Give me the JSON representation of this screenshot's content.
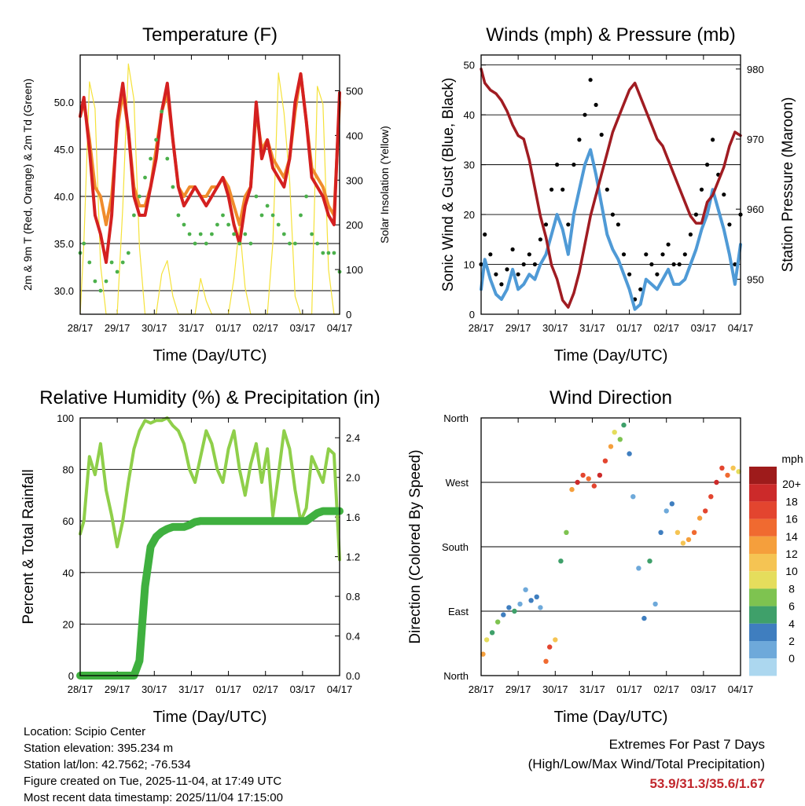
{
  "x_ticks": [
    "28/17",
    "29/17",
    "30/17",
    "31/17",
    "01/17",
    "02/17",
    "03/17",
    "04/17"
  ],
  "xlabel": "Time (Day/UTC)",
  "colors": {
    "t2m": "#d42020",
    "t9m": "#f08c2c",
    "td": "#4bb04b",
    "solar": "#f5e23a",
    "gust": "#000000",
    "wind": "#4f9ad6",
    "pressure": "#a01c22",
    "rh": "#8fcf4a",
    "precip": "#3fb03f",
    "extreme": "#c1272d"
  },
  "chart_data": [
    {
      "type": "line",
      "title": "Temperature (F)",
      "xlabel": "Time (Day/UTC)",
      "ylabel": "2m & 9m T (Red, Orange) & 2m Td (Green)",
      "ylabel_right": "Solar Insolation (Yellow)",
      "ylim": [
        27.5,
        55
      ],
      "ylim_right": [
        0,
        580
      ],
      "yticks": [
        30.0,
        35.0,
        40.0,
        45.0,
        50.0
      ],
      "yticks_right": [
        0,
        100,
        200,
        300,
        400,
        500
      ],
      "x": [
        0,
        0.1,
        0.25,
        0.4,
        0.55,
        0.7,
        0.85,
        1.0,
        1.15,
        1.3,
        1.45,
        1.6,
        1.75,
        1.9,
        2.05,
        2.2,
        2.35,
        2.5,
        2.65,
        2.8,
        2.95,
        3.1,
        3.25,
        3.4,
        3.55,
        3.7,
        3.85,
        4.0,
        4.15,
        4.3,
        4.45,
        4.6,
        4.75,
        4.9,
        5.05,
        5.2,
        5.35,
        5.5,
        5.65,
        5.8,
        5.95,
        6.1,
        6.25,
        6.4,
        6.55,
        6.7,
        6.85,
        7.0
      ],
      "series": [
        {
          "name": "2m T",
          "values": [
            48.5,
            50.5,
            45,
            38,
            36,
            33,
            38,
            48,
            52,
            47,
            40,
            38,
            38,
            41,
            44,
            49,
            52,
            46,
            41,
            39,
            40,
            41,
            40,
            39,
            40,
            41,
            42,
            40,
            37,
            35,
            39,
            41,
            50,
            44,
            46,
            43,
            42,
            41,
            44,
            50,
            53,
            48,
            42,
            41,
            40,
            38,
            37,
            51
          ]
        },
        {
          "name": "9m T",
          "values": [
            48.5,
            50,
            46,
            41,
            40,
            37,
            40,
            47,
            51,
            47,
            41,
            39,
            39,
            41,
            45,
            49,
            51,
            46,
            41,
            40,
            41,
            41,
            40,
            40,
            41,
            41,
            42,
            41,
            39,
            37,
            40,
            41,
            49,
            45,
            46,
            44,
            43,
            42,
            44,
            49,
            53,
            48,
            43,
            42,
            41,
            39,
            38,
            50
          ]
        },
        {
          "name": "2m Td",
          "values": [
            34,
            35,
            33,
            31,
            30,
            31,
            33,
            32,
            33,
            34,
            38,
            40,
            42,
            44,
            46,
            49,
            44,
            41,
            38,
            37,
            36,
            35,
            36,
            35,
            36,
            37,
            38,
            37,
            36,
            35,
            36,
            35,
            40,
            38,
            39,
            38,
            37,
            36,
            35,
            35,
            38,
            40,
            36,
            35,
            34,
            34,
            34,
            32
          ]
        },
        {
          "name": "Solar",
          "values": [
            0,
            160,
            520,
            460,
            110,
            0,
            0,
            0,
            240,
            560,
            480,
            150,
            0,
            0,
            0,
            90,
            120,
            40,
            0,
            0,
            0,
            0,
            80,
            30,
            0,
            0,
            0,
            0,
            80,
            200,
            60,
            0,
            0,
            0,
            0,
            160,
            540,
            450,
            300,
            40,
            0,
            0,
            0,
            510,
            470,
            100,
            0,
            0
          ]
        }
      ]
    },
    {
      "type": "line",
      "title": "Winds (mph) & Pressure (mb)",
      "xlabel": "Time (Day/UTC)",
      "ylabel": "Sonic Wind & Gust (Blue, Black)",
      "ylabel_right": "Station Pressure (Maroon)",
      "ylim": [
        0,
        52
      ],
      "ylim_right": [
        945,
        982
      ],
      "yticks": [
        0,
        10,
        20,
        30,
        40,
        50
      ],
      "yticks_right": [
        950,
        960,
        970,
        980
      ],
      "x": [
        0,
        0.1,
        0.25,
        0.4,
        0.55,
        0.7,
        0.85,
        1.0,
        1.15,
        1.3,
        1.45,
        1.6,
        1.75,
        1.9,
        2.05,
        2.2,
        2.35,
        2.5,
        2.65,
        2.8,
        2.95,
        3.1,
        3.25,
        3.4,
        3.55,
        3.7,
        3.85,
        4.0,
        4.15,
        4.3,
        4.45,
        4.6,
        4.75,
        4.9,
        5.05,
        5.2,
        5.35,
        5.5,
        5.65,
        5.8,
        5.95,
        6.1,
        6.25,
        6.4,
        6.55,
        6.7,
        6.85,
        7.0
      ],
      "series": [
        {
          "name": "Gust",
          "values": [
            10,
            16,
            12,
            8,
            6,
            9,
            13,
            8,
            10,
            12,
            10,
            15,
            18,
            25,
            30,
            25,
            18,
            30,
            35,
            40,
            47,
            42,
            36,
            25,
            20,
            18,
            12,
            8,
            3,
            5,
            12,
            10,
            8,
            12,
            14,
            10,
            10,
            12,
            16,
            20,
            25,
            30,
            35,
            28,
            24,
            18,
            10,
            20
          ]
        },
        {
          "name": "Wind",
          "values": [
            5,
            11,
            7,
            4,
            3,
            5,
            9,
            5,
            6,
            8,
            7,
            10,
            12,
            16,
            20,
            17,
            12,
            20,
            25,
            30,
            33,
            28,
            22,
            16,
            13,
            11,
            8,
            5,
            1,
            2,
            7,
            6,
            5,
            7,
            9,
            6,
            6,
            7,
            10,
            13,
            17,
            20,
            25,
            21,
            17,
            12,
            6,
            14
          ]
        },
        {
          "name": "Pressure",
          "values": [
            980,
            978,
            977,
            976.5,
            975.5,
            974,
            972,
            970.5,
            970,
            967,
            963,
            959,
            956,
            952,
            950,
            947,
            946,
            948,
            951,
            955,
            959,
            962,
            965,
            968,
            971,
            973,
            975,
            977,
            978,
            976,
            974,
            972,
            970,
            969,
            967,
            965,
            963,
            961,
            959,
            958,
            958,
            961,
            962,
            964,
            966,
            969,
            971,
            970.5
          ]
        }
      ]
    },
    {
      "type": "line",
      "title": "Relative Humidity (%) & Precipitation (in)",
      "xlabel": "Time (Day/UTC)",
      "ylabel": "Percent & Total Rainfall",
      "ylim": [
        0,
        100
      ],
      "ylim_right": [
        0,
        2.6
      ],
      "yticks": [
        0,
        20,
        40,
        60,
        80,
        100
      ],
      "yticks_right": [
        0.0,
        0.4,
        0.8,
        1.2,
        1.6,
        2.0,
        2.4
      ],
      "x": [
        0,
        0.1,
        0.25,
        0.4,
        0.55,
        0.7,
        0.85,
        1.0,
        1.15,
        1.3,
        1.45,
        1.6,
        1.75,
        1.9,
        2.05,
        2.2,
        2.35,
        2.5,
        2.65,
        2.8,
        2.95,
        3.1,
        3.25,
        3.4,
        3.55,
        3.7,
        3.85,
        4.0,
        4.15,
        4.3,
        4.45,
        4.6,
        4.75,
        4.9,
        5.05,
        5.2,
        5.35,
        5.5,
        5.65,
        5.8,
        5.95,
        6.1,
        6.25,
        6.4,
        6.55,
        6.7,
        6.85,
        7.0
      ],
      "series": [
        {
          "name": "RH",
          "values": [
            55,
            60,
            85,
            78,
            90,
            72,
            62,
            50,
            60,
            75,
            88,
            95,
            99,
            98,
            99,
            99,
            100,
            97,
            95,
            90,
            80,
            75,
            85,
            95,
            90,
            80,
            75,
            88,
            95,
            80,
            70,
            82,
            90,
            75,
            88,
            62,
            78,
            95,
            88,
            72,
            60,
            65,
            85,
            80,
            75,
            88,
            86,
            45
          ]
        },
        {
          "name": "Precip",
          "values": [
            0,
            0,
            0,
            0,
            0,
            0,
            0,
            0,
            0,
            0,
            0,
            0.15,
            0.9,
            1.3,
            1.4,
            1.45,
            1.48,
            1.5,
            1.5,
            1.5,
            1.52,
            1.55,
            1.56,
            1.56,
            1.56,
            1.56,
            1.56,
            1.56,
            1.56,
            1.56,
            1.56,
            1.56,
            1.56,
            1.56,
            1.56,
            1.56,
            1.56,
            1.56,
            1.56,
            1.56,
            1.56,
            1.56,
            1.6,
            1.64,
            1.66,
            1.66,
            1.66,
            1.66
          ]
        }
      ]
    },
    {
      "type": "scatter",
      "title": "Wind Direction",
      "xlabel": "Time (Day/UTC)",
      "ylabel": "Direction (Colored By Speed)",
      "ylim": [
        0,
        360
      ],
      "yticks": [
        "North",
        "East",
        "South",
        "West",
        "North"
      ],
      "ytick_values": [
        0,
        90,
        180,
        270,
        360
      ],
      "x": [
        0.05,
        0.15,
        0.3,
        0.45,
        0.6,
        0.75,
        0.9,
        1.05,
        1.2,
        1.35,
        1.5,
        1.6,
        1.75,
        1.85,
        2.0,
        2.15,
        2.3,
        2.45,
        2.6,
        2.75,
        2.9,
        3.05,
        3.2,
        3.35,
        3.5,
        3.6,
        3.75,
        3.85,
        4.0,
        4.1,
        4.25,
        4.4,
        4.55,
        4.7,
        4.85,
        5.0,
        5.15,
        5.3,
        5.45,
        5.6,
        5.75,
        5.9,
        6.05,
        6.2,
        6.35,
        6.5,
        6.65,
        6.8,
        6.95
      ],
      "values": [
        30,
        50,
        60,
        75,
        85,
        95,
        90,
        100,
        120,
        105,
        110,
        95,
        20,
        40,
        50,
        160,
        200,
        260,
        270,
        280,
        275,
        265,
        280,
        300,
        320,
        340,
        330,
        350,
        310,
        250,
        150,
        80,
        160,
        100,
        200,
        230,
        240,
        200,
        185,
        190,
        200,
        220,
        230,
        250,
        270,
        290,
        280,
        290,
        285
      ],
      "speeds": [
        14,
        10,
        6,
        8,
        4,
        5,
        6,
        3,
        2,
        4,
        5,
        3,
        16,
        18,
        12,
        6,
        8,
        14,
        20,
        18,
        16,
        18,
        20,
        18,
        14,
        10,
        8,
        6,
        5,
        2,
        3,
        4,
        6,
        3,
        4,
        3,
        4,
        12,
        12,
        14,
        16,
        14,
        18,
        18,
        20,
        18,
        16,
        12,
        10
      ],
      "colorbar": {
        "title": "mph",
        "labels": [
          "20+",
          "18",
          "16",
          "14",
          "12",
          "10",
          "8",
          "6",
          "4",
          "2",
          "0"
        ],
        "colors": [
          "#9e1b1b",
          "#cc2a2a",
          "#e3452f",
          "#f06a30",
          "#f59f3c",
          "#f5c453",
          "#e5dd5c",
          "#7ec350",
          "#3fa06a",
          "#3f7ebf",
          "#6ea9da",
          "#acd7ef"
        ]
      }
    }
  ],
  "meta": {
    "location": "Location: Scipio Center",
    "elevation": "Station elevation: 395.234 m",
    "latlon": "Station lat/lon: 42.7562; -76.534",
    "created": "Figure created on Tue, 2025-11-04, at 17:49 UTC",
    "recent": "Most recent data timestamp: 2025/11/04 17:15:00"
  },
  "extremes": {
    "title": "Extremes For Past 7 Days",
    "subtitle": "(High/Low/Max Wind/Total Precipitation)",
    "values": "53.9/31.3/35.6/1.67"
  }
}
